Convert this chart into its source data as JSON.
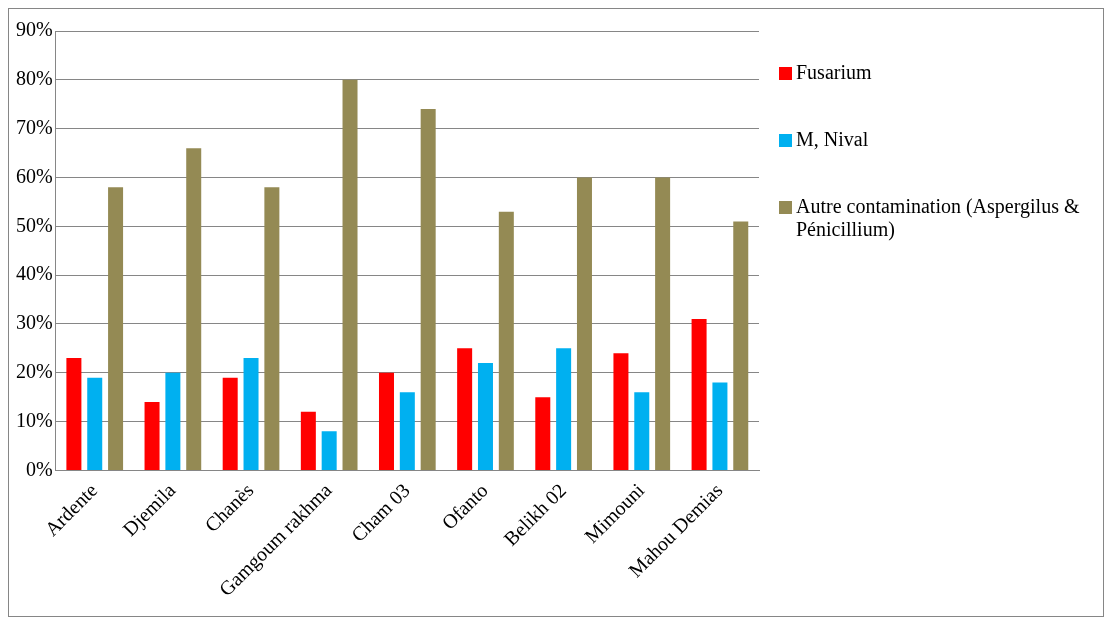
{
  "chart_data": {
    "type": "bar",
    "categories": [
      "Ardente",
      "Djemila",
      "Chanès",
      "Gamgoum rakhma",
      "Cham 03",
      "Ofanto",
      "Belikh 02",
      "Mimouni",
      "Mahou Demias"
    ],
    "series": [
      {
        "name": "Fusarium",
        "color": "#ff0000",
        "values": [
          23,
          14,
          19,
          12,
          20,
          25,
          15,
          24,
          31
        ]
      },
      {
        "name": "M, Nival",
        "color": "#00b0f0",
        "values": [
          19,
          20,
          23,
          8,
          16,
          22,
          25,
          16,
          18
        ]
      },
      {
        "name": "Autre contamination (Aspergilus & Pénicillium)",
        "color": "#948a54",
        "values": [
          58,
          66,
          58,
          80,
          74,
          53,
          60,
          60,
          51
        ]
      }
    ],
    "ylim": [
      0,
      90
    ],
    "yticks": [
      {
        "value": 0,
        "label": "0%"
      },
      {
        "value": 10,
        "label": "10%"
      },
      {
        "value": 20,
        "label": "20%"
      },
      {
        "value": 30,
        "label": "30%"
      },
      {
        "value": 40,
        "label": "40%"
      },
      {
        "value": 50,
        "label": "50%"
      },
      {
        "value": 60,
        "label": "60%"
      },
      {
        "value": 70,
        "label": "70%"
      },
      {
        "value": 80,
        "label": "80%"
      },
      {
        "value": 90,
        "label": "90%"
      }
    ],
    "grid": "y",
    "legend": "right"
  }
}
